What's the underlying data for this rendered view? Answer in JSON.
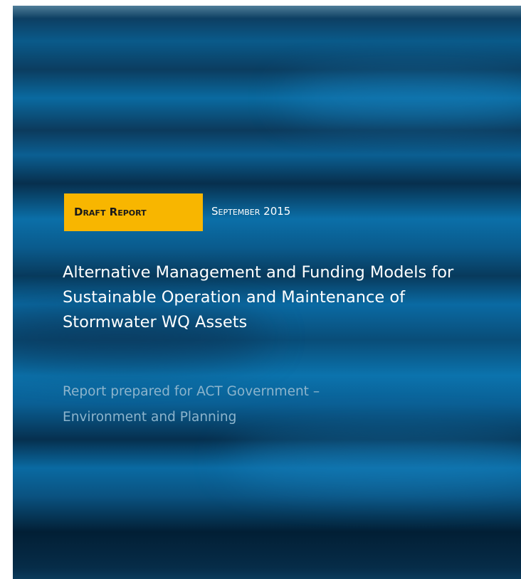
{
  "badge": "Draft Report",
  "date": "September 2015",
  "title": [
    "Alternative Management and Funding Models for",
    "Sustainable Operation and Maintenance of",
    "Stormwater WQ Assets"
  ],
  "subtitle": [
    "Report prepared for ACT Government –",
    "Environment and Planning"
  ]
}
